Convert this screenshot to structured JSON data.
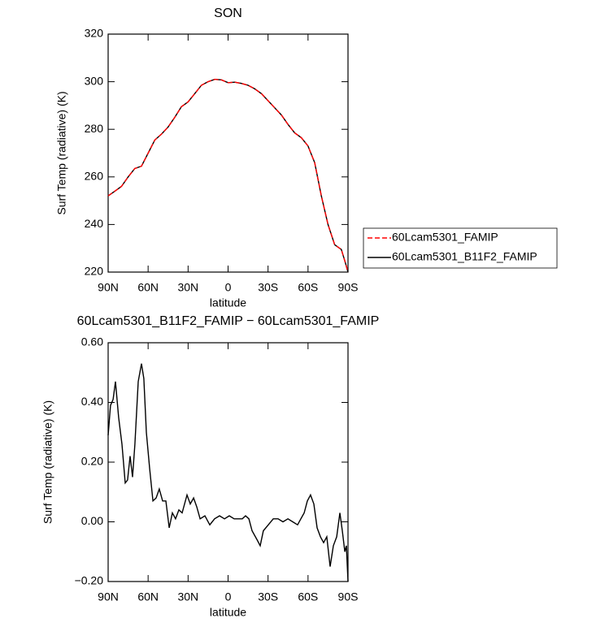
{
  "chart_data": [
    {
      "type": "line",
      "title": "SON",
      "xlabel": "latitude",
      "ylabel": "Surf Temp (radiative) (K)",
      "x": [
        90,
        85,
        80,
        75,
        70,
        65,
        60,
        55,
        50,
        45,
        40,
        35,
        30,
        25,
        20,
        15,
        10,
        5,
        0,
        -5,
        -10,
        -15,
        -20,
        -25,
        -30,
        -35,
        -40,
        -45,
        -50,
        -55,
        -60,
        -65,
        -70,
        -75,
        -80,
        -85,
        -88,
        -90
      ],
      "series": [
        {
          "name": "60Lcam5301_FAMIP",
          "color": "#ff0000",
          "dash": true,
          "values": [
            252,
            254,
            256,
            260,
            263.5,
            264.5,
            270,
            275.5,
            278,
            281,
            285,
            289.5,
            291.5,
            295,
            298.5,
            300,
            301,
            300.8,
            299.6,
            299.8,
            299.3,
            298.5,
            297,
            295,
            292,
            289,
            286,
            282,
            278.5,
            276.5,
            273,
            266,
            252,
            240,
            231.5,
            229.5,
            224,
            220
          ]
        },
        {
          "name": "60Lcam5301_B11F2_FAMIP",
          "color": "#000000",
          "dash": false,
          "values": [
            252,
            254,
            256,
            260,
            263.5,
            264.5,
            270,
            275.5,
            278,
            281,
            285,
            289.5,
            291.5,
            295,
            298.5,
            300,
            301,
            300.8,
            299.6,
            299.8,
            299.3,
            298.5,
            297,
            295,
            292,
            289,
            286,
            282,
            278.5,
            276.5,
            273,
            266,
            252,
            240,
            231.5,
            229.5,
            224,
            220
          ]
        }
      ],
      "xlim": [
        90,
        -90
      ],
      "xticks": [
        {
          "value": 90,
          "label": "90N"
        },
        {
          "value": 60,
          "label": "60N"
        },
        {
          "value": 30,
          "label": "30N"
        },
        0,
        {
          "value": -30,
          "label": "30S"
        },
        {
          "value": -60,
          "label": "60S"
        },
        {
          "value": -90,
          "label": "90S"
        }
      ],
      "ylim": [
        220,
        320
      ],
      "yticks": [
        220,
        240,
        260,
        280,
        300,
        320
      ],
      "legend": "right"
    },
    {
      "type": "line",
      "title": "60Lcam5301_B11F2_FAMIP − 60Lcam5301_FAMIP",
      "xlabel": "latitude",
      "ylabel": "Surf Temp (radiative) (K)",
      "x": [
        90,
        88.2,
        86.3,
        84.5,
        82.1,
        79.6,
        77.2,
        75.4,
        73.5,
        71.7,
        69.9,
        67.4,
        65.0,
        63.2,
        61.3,
        58.9,
        56.4,
        54.0,
        51.6,
        49.1,
        46.7,
        44.2,
        41.8,
        39.4,
        36.9,
        34.5,
        30.8,
        28.4,
        25.9,
        23.5,
        21.0,
        17.4,
        13.7,
        10.1,
        6.4,
        2.7,
        -0.9,
        -4.6,
        -8.2,
        -10.7,
        -13.1,
        -15.6,
        -18.0,
        -21.7,
        -24.1,
        -26.5,
        -30.2,
        -33.9,
        -37.5,
        -41.2,
        -44.9,
        -48.5,
        -52.2,
        -54.6,
        -57.1,
        -59.5,
        -61.9,
        -64.4,
        -66.8,
        -69.3,
        -71.7,
        -74.1,
        -76.6,
        -79.0,
        -81.5,
        -83.9,
        -85.7,
        -87.6,
        -88.8,
        -90
      ],
      "series": [
        {
          "name": "60Lcam5301_B11F2_FAMIP",
          "color": "#000000",
          "dash": false,
          "values": [
            0.29,
            0.39,
            0.41,
            0.47,
            0.35,
            0.26,
            0.13,
            0.14,
            0.22,
            0.15,
            0.26,
            0.47,
            0.53,
            0.48,
            0.3,
            0.18,
            0.07,
            0.08,
            0.11,
            0.07,
            0.07,
            -0.02,
            0.03,
            0.01,
            0.04,
            0.03,
            0.09,
            0.06,
            0.08,
            0.05,
            0.01,
            0.02,
            -0.01,
            0.01,
            0.02,
            0.01,
            0.02,
            0.01,
            0.01,
            0.01,
            0.02,
            0.01,
            -0.03,
            -0.06,
            -0.08,
            -0.03,
            -0.01,
            0.01,
            0.01,
            0.0,
            0.01,
            0.0,
            -0.01,
            0.01,
            0.03,
            0.07,
            0.09,
            0.06,
            -0.02,
            -0.05,
            -0.07,
            -0.05,
            -0.15,
            -0.08,
            -0.05,
            0.03,
            -0.03,
            -0.1,
            -0.08,
            -0.2
          ]
        }
      ],
      "xlim": [
        90,
        -90
      ],
      "xticks": [
        {
          "value": 90,
          "label": "90N"
        },
        {
          "value": 60,
          "label": "60N"
        },
        {
          "value": 30,
          "label": "30N"
        },
        0,
        {
          "value": -30,
          "label": "30S"
        },
        {
          "value": -60,
          "label": "60S"
        },
        {
          "value": -90,
          "label": "90S"
        }
      ],
      "ylim": [
        -0.2,
        0.6
      ],
      "yticks": [
        {
          "value": -0.2,
          "label": "−0.20"
        },
        {
          "value": 0,
          "label": "0.00"
        },
        {
          "value": 0.2,
          "label": "0.20"
        },
        {
          "value": 0.4,
          "label": "0.40"
        },
        {
          "value": 0.6,
          "label": "0.60"
        }
      ]
    }
  ]
}
